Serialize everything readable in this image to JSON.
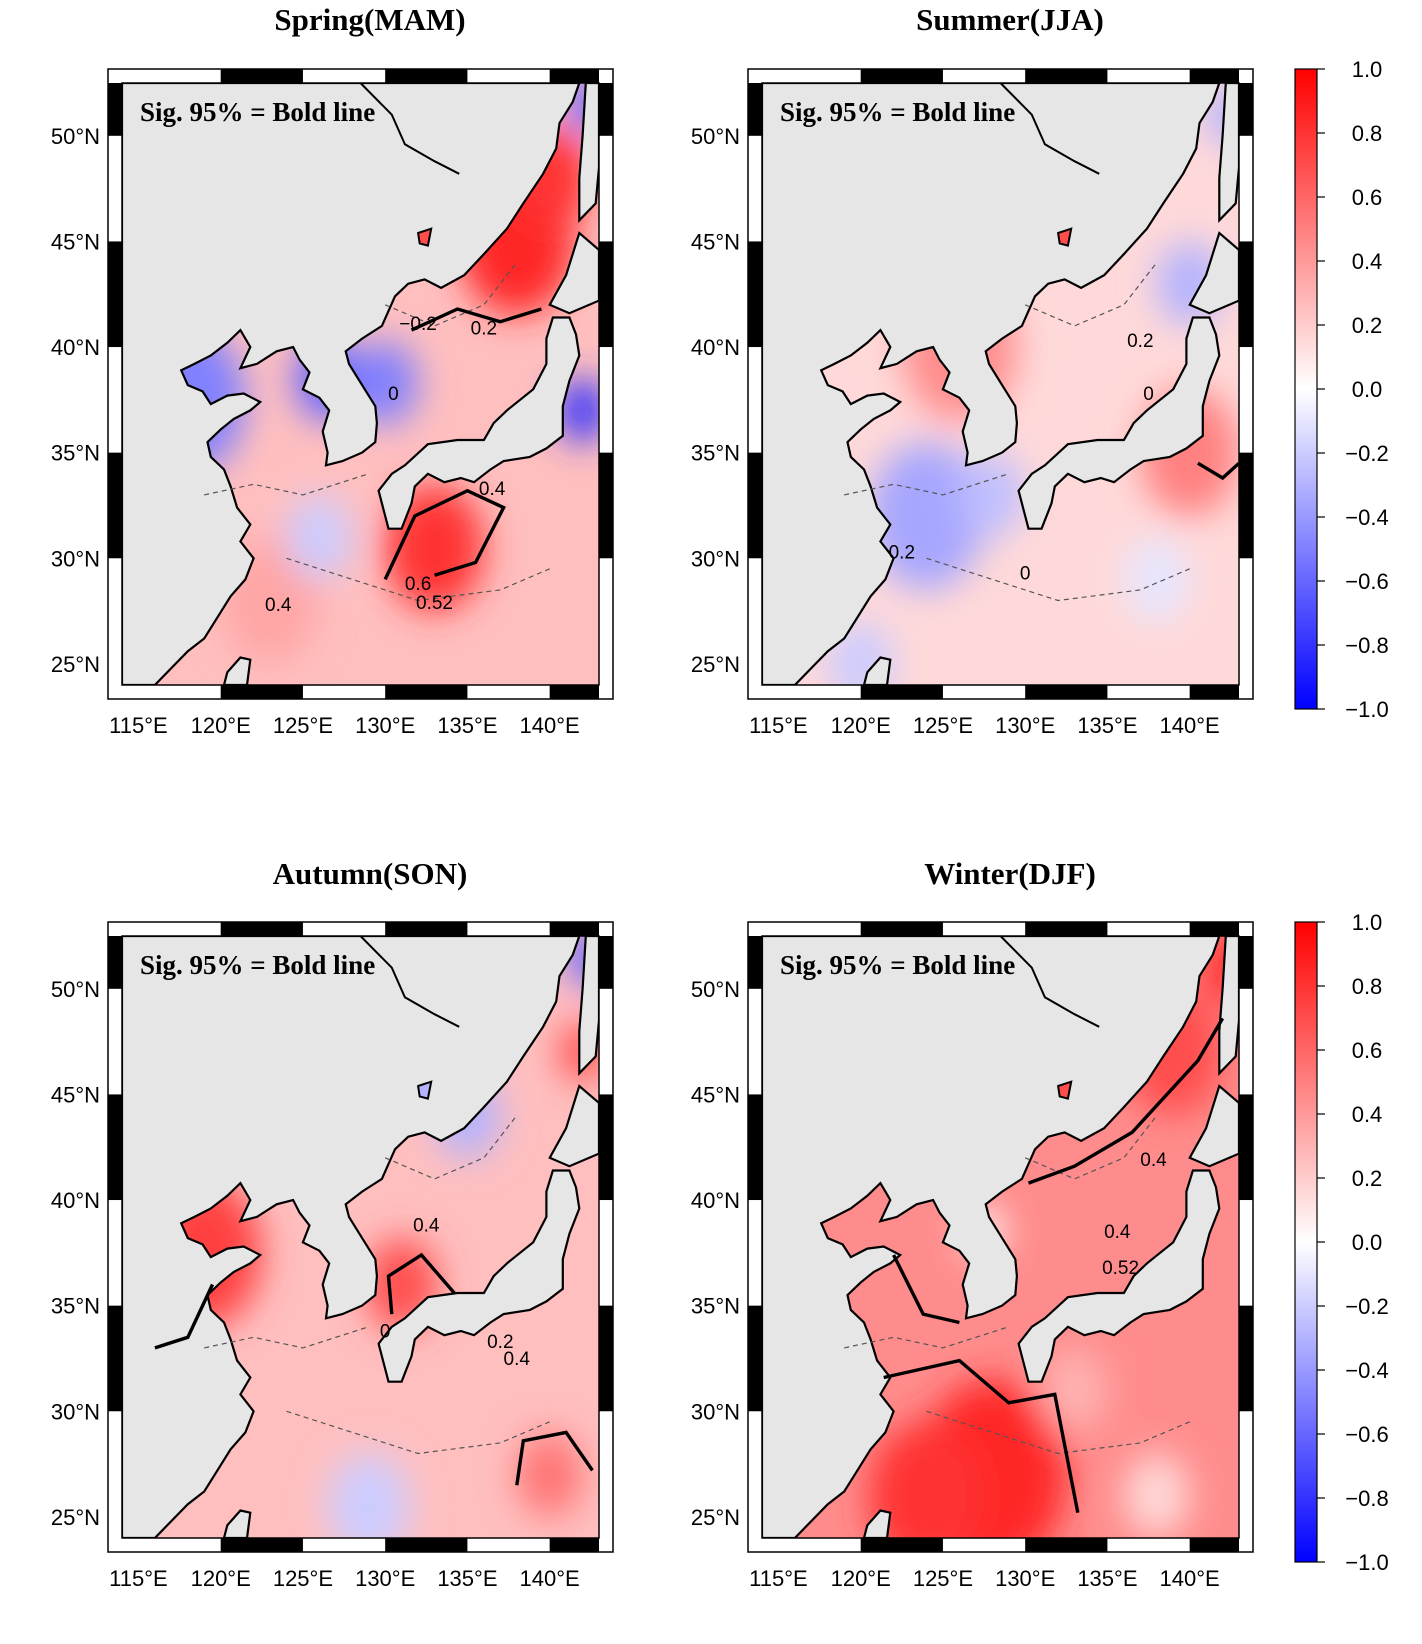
{
  "legend_note": "Sig. 95% = Bold line",
  "x_ticks": [
    "115°E",
    "120°E",
    "125°E",
    "130°E",
    "135°E",
    "140°E"
  ],
  "y_ticks": [
    "25°N",
    "30°N",
    "35°N",
    "40°N",
    "45°N",
    "50°N"
  ],
  "colorbar": {
    "ticks": [
      "1.0",
      "0.8",
      "0.6",
      "0.4",
      "0.2",
      "0.0",
      "−0.2",
      "−0.4",
      "−0.6",
      "−0.8",
      "−1.0"
    ],
    "max_color": "#ff0000",
    "min_color": "#0000ff",
    "mid_color": "#ffffff"
  },
  "land_color": "#e6e6e6",
  "panels": [
    {
      "title": "Spring(MAM)",
      "labels": [
        "−0.2",
        "0.2",
        "0",
        "0.4",
        "0.6",
        "0.52",
        "0.4"
      ]
    },
    {
      "title": "Summer(JJA)",
      "labels": [
        "0.2",
        "0",
        "0.2",
        "0"
      ]
    },
    {
      "title": "Autumn(SON)",
      "labels": [
        "0.4",
        "0",
        "0.2",
        "0.4"
      ]
    },
    {
      "title": "Winter(DJF)",
      "labels": [
        "0.4",
        "0.4",
        "0.52"
      ]
    }
  ]
}
